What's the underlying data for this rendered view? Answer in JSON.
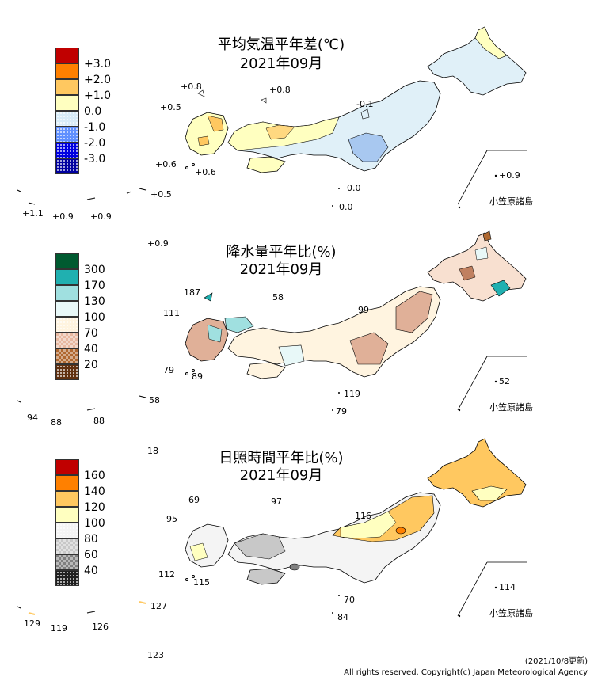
{
  "panels": [
    {
      "title": "平均気温平年差(℃)",
      "period": "2021年09月",
      "legend": [
        {
          "label": "+3.0",
          "color": "#c00000",
          "pattern": "solid"
        },
        {
          "label": "+2.0",
          "color": "#ff8000",
          "pattern": "solid"
        },
        {
          "label": "+1.0",
          "color": "#ffc860",
          "pattern": "solid"
        },
        {
          "label": "0.0",
          "color": "#ffffc0",
          "pattern": "solid"
        },
        {
          "label": "-1.0",
          "color": "#d8ecf8",
          "pattern": "dots"
        },
        {
          "label": "-2.0",
          "color": "#6090ff",
          "pattern": "dots"
        },
        {
          "label": "-3.0",
          "color": "#0000e0",
          "pattern": "dots"
        },
        {
          "label": "",
          "color": "#0000a0",
          "pattern": "dots"
        }
      ],
      "stations": [
        "+0.8",
        "+0.8",
        "+0.5",
        "-0.1",
        "+0.6",
        "+0.6",
        "0.0",
        "0.0",
        "+0.5",
        "+1.1",
        "+0.9",
        "+0.9",
        "+0.9",
        "+0.9"
      ],
      "island_label": "小笠原諸島"
    },
    {
      "title": "降水量平年比(%)",
      "period": "2021年09月",
      "legend": [
        {
          "label": "300",
          "color": "#005a30",
          "pattern": "solid"
        },
        {
          "label": "170",
          "color": "#20b0b0",
          "pattern": "solid"
        },
        {
          "label": "130",
          "color": "#a0e0e0",
          "pattern": "solid"
        },
        {
          "label": "100",
          "color": "#e8f8f8",
          "pattern": "solid"
        },
        {
          "label": "70",
          "color": "#fff4e0",
          "pattern": "dots"
        },
        {
          "label": "40",
          "color": "#e8b8a0",
          "pattern": "check"
        },
        {
          "label": "20",
          "color": "#b06830",
          "pattern": "check"
        },
        {
          "label": "",
          "color": "#603010",
          "pattern": "dots"
        }
      ],
      "stations": [
        "187",
        "58",
        "111",
        "99",
        "79",
        "89",
        "119",
        "79",
        "58",
        "94",
        "88",
        "88",
        "52"
      ],
      "island_label": "小笠原諸島"
    },
    {
      "title": "日照時間平年比(%)",
      "period": "2021年09月",
      "legend": [
        {
          "label": "160",
          "color": "#c00000",
          "pattern": "solid"
        },
        {
          "label": "140",
          "color": "#ff8000",
          "pattern": "solid"
        },
        {
          "label": "120",
          "color": "#ffc860",
          "pattern": "solid"
        },
        {
          "label": "100",
          "color": "#ffffc0",
          "pattern": "solid"
        },
        {
          "label": "80",
          "color": "#f4f4f4",
          "pattern": "dots"
        },
        {
          "label": "60",
          "color": "#c8c8c8",
          "pattern": "check"
        },
        {
          "label": "40",
          "color": "#808080",
          "pattern": "check"
        },
        {
          "label": "",
          "color": "#202020",
          "pattern": "dots"
        }
      ],
      "stations": [
        "18",
        "69",
        "97",
        "95",
        "116",
        "112",
        "115",
        "70",
        "84",
        "127",
        "129",
        "119",
        "126",
        "114",
        "123"
      ],
      "island_label": "小笠原諸島"
    }
  ],
  "footer": {
    "updated": "(2021/10/8更新)",
    "copyright": "All rights reserved. Copyright(c) Japan Meteorological Agency"
  }
}
